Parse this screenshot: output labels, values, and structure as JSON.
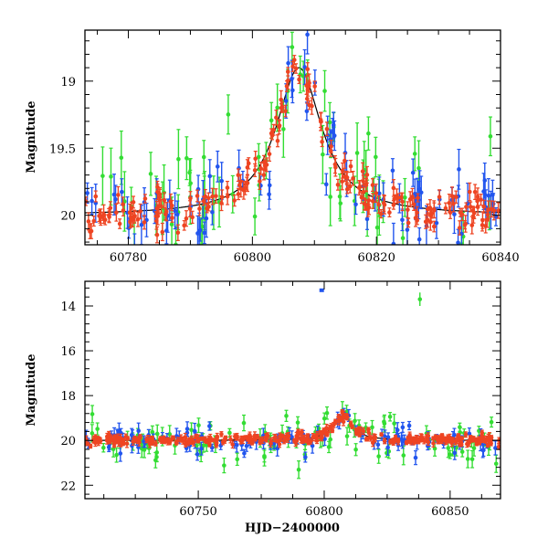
{
  "chart_data": [
    {
      "type": "scatter",
      "panel": "zoom",
      "xlabel": "",
      "ylabel": "Magnitude",
      "xlim": [
        60773,
        60840
      ],
      "ylim": [
        20.22,
        18.62
      ],
      "y_inverted": true,
      "xticks": [
        60780,
        60800,
        60820,
        60840
      ],
      "xtick_labels": [
        "60780",
        "60800",
        "60820",
        "60840"
      ],
      "yticks": [
        19,
        19.5,
        20
      ],
      "ytick_labels": [
        "19",
        "19.5",
        "20"
      ],
      "model": {
        "baseline": 20.0,
        "peak": 18.9,
        "t0": 60807.5,
        "width": 4.5
      },
      "series": [
        {
          "color": "#33dd33",
          "scatter": 0.25,
          "err": 0.16,
          "count": 70
        },
        {
          "color": "#2255ee",
          "scatter": 0.14,
          "err": 0.11,
          "count": 90
        },
        {
          "color": "#ee4422",
          "scatter": 0.07,
          "err": 0.05,
          "count": 220
        }
      ]
    },
    {
      "type": "scatter",
      "panel": "full",
      "xlabel": "HJD−2400000",
      "ylabel": "Magnitude",
      "xlim": [
        60705,
        60870
      ],
      "ylim": [
        22.6,
        12.9
      ],
      "y_inverted": true,
      "xticks": [
        60750,
        60800,
        60850
      ],
      "xtick_labels": [
        "60750",
        "60800",
        "60850"
      ],
      "yticks": [
        14,
        16,
        18,
        20,
        22
      ],
      "ytick_labels": [
        "14",
        "16",
        "18",
        "20",
        "22"
      ],
      "model": {
        "baseline": 20.0,
        "peak": 18.9,
        "t0": 60807.5,
        "width": 4.5
      },
      "outliers": [
        {
          "x": 60799,
          "y": 13.3,
          "color": "#2255ee"
        },
        {
          "x": 60838,
          "y": 13.7,
          "color": "#33dd33"
        }
      ],
      "series": [
        {
          "color": "#33dd33",
          "scatter": 0.55,
          "err": 0.3,
          "count": 110
        },
        {
          "color": "#2255ee",
          "scatter": 0.3,
          "err": 0.25,
          "count": 110
        },
        {
          "color": "#ee4422",
          "scatter": 0.12,
          "err": 0.12,
          "count": 320
        }
      ]
    }
  ]
}
